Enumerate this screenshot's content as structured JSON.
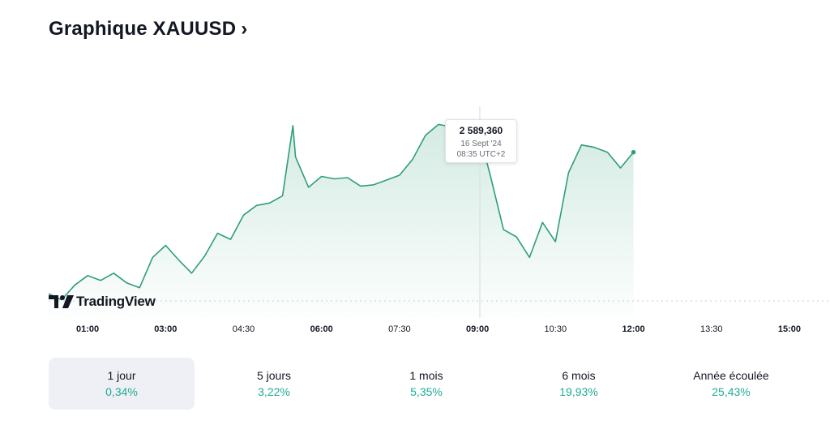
{
  "header": {
    "title": "Graphique XAUUSD",
    "chevron": "›"
  },
  "tooltip": {
    "value": "2 589,360",
    "date": "16 Sept '24",
    "time": "08:35 UTC+2"
  },
  "branding": {
    "logo_text": "TradingView"
  },
  "periods": [
    {
      "label": "1 jour",
      "change": "0,34%",
      "active": true
    },
    {
      "label": "5 jours",
      "change": "3,22%",
      "active": false
    },
    {
      "label": "1 mois",
      "change": "5,35%",
      "active": false
    },
    {
      "label": "6 mois",
      "change": "19,93%",
      "active": false
    },
    {
      "label": "Année écoulée",
      "change": "25,43%",
      "active": false
    }
  ],
  "colors": {
    "line": "#2f9e78",
    "area_top": "#cfe9df",
    "positive": "#22ab94",
    "tick_text": "#131722"
  },
  "chart_data": {
    "type": "area",
    "x_ticks": [
      {
        "label": "01:00",
        "bold": true
      },
      {
        "label": "03:00",
        "bold": true
      },
      {
        "label": "04:30",
        "bold": false
      },
      {
        "label": "06:00",
        "bold": true
      },
      {
        "label": "07:30",
        "bold": false
      },
      {
        "label": "09:00",
        "bold": true
      },
      {
        "label": "10:30",
        "bold": false
      },
      {
        "label": "12:00",
        "bold": true
      },
      {
        "label": "13:30",
        "bold": false
      },
      {
        "label": "15:00",
        "bold": true
      }
    ],
    "x_domain_hours": [
      0.25,
      15.0
    ],
    "y_range": [
      2573.5,
      2591.0
    ],
    "x_hours": [
      0.25,
      0.5,
      0.75,
      1.0,
      1.25,
      1.5,
      1.75,
      2.0,
      2.25,
      2.5,
      2.75,
      3.0,
      3.25,
      3.5,
      3.75,
      4.0,
      4.25,
      4.5,
      4.75,
      4.95,
      5.0,
      5.25,
      5.5,
      5.75,
      6.0,
      6.25,
      6.5,
      6.75,
      7.0,
      7.25,
      7.5,
      7.75,
      8.0,
      8.25,
      8.5,
      8.75,
      9.0,
      9.25,
      9.5,
      9.75,
      10.0,
      10.25,
      10.5,
      10.75,
      11.0,
      11.25,
      11.5
    ],
    "y_values": [
      2575.5,
      2575.0,
      2576.2,
      2577.0,
      2576.6,
      2577.2,
      2576.4,
      2576.0,
      2578.5,
      2579.5,
      2578.3,
      2577.2,
      2578.6,
      2580.5,
      2580.0,
      2582.0,
      2582.8,
      2583.0,
      2583.6,
      2589.4,
      2586.8,
      2584.3,
      2585.2,
      2585.0,
      2585.1,
      2584.4,
      2584.5,
      2584.9,
      2585.3,
      2586.6,
      2588.6,
      2589.5,
      2589.3,
      2589.0,
      2589.36,
      2585.2,
      2580.8,
      2580.2,
      2578.5,
      2581.4,
      2579.8,
      2585.5,
      2587.8,
      2587.6,
      2587.2,
      2585.9,
      2587.2
    ]
  }
}
